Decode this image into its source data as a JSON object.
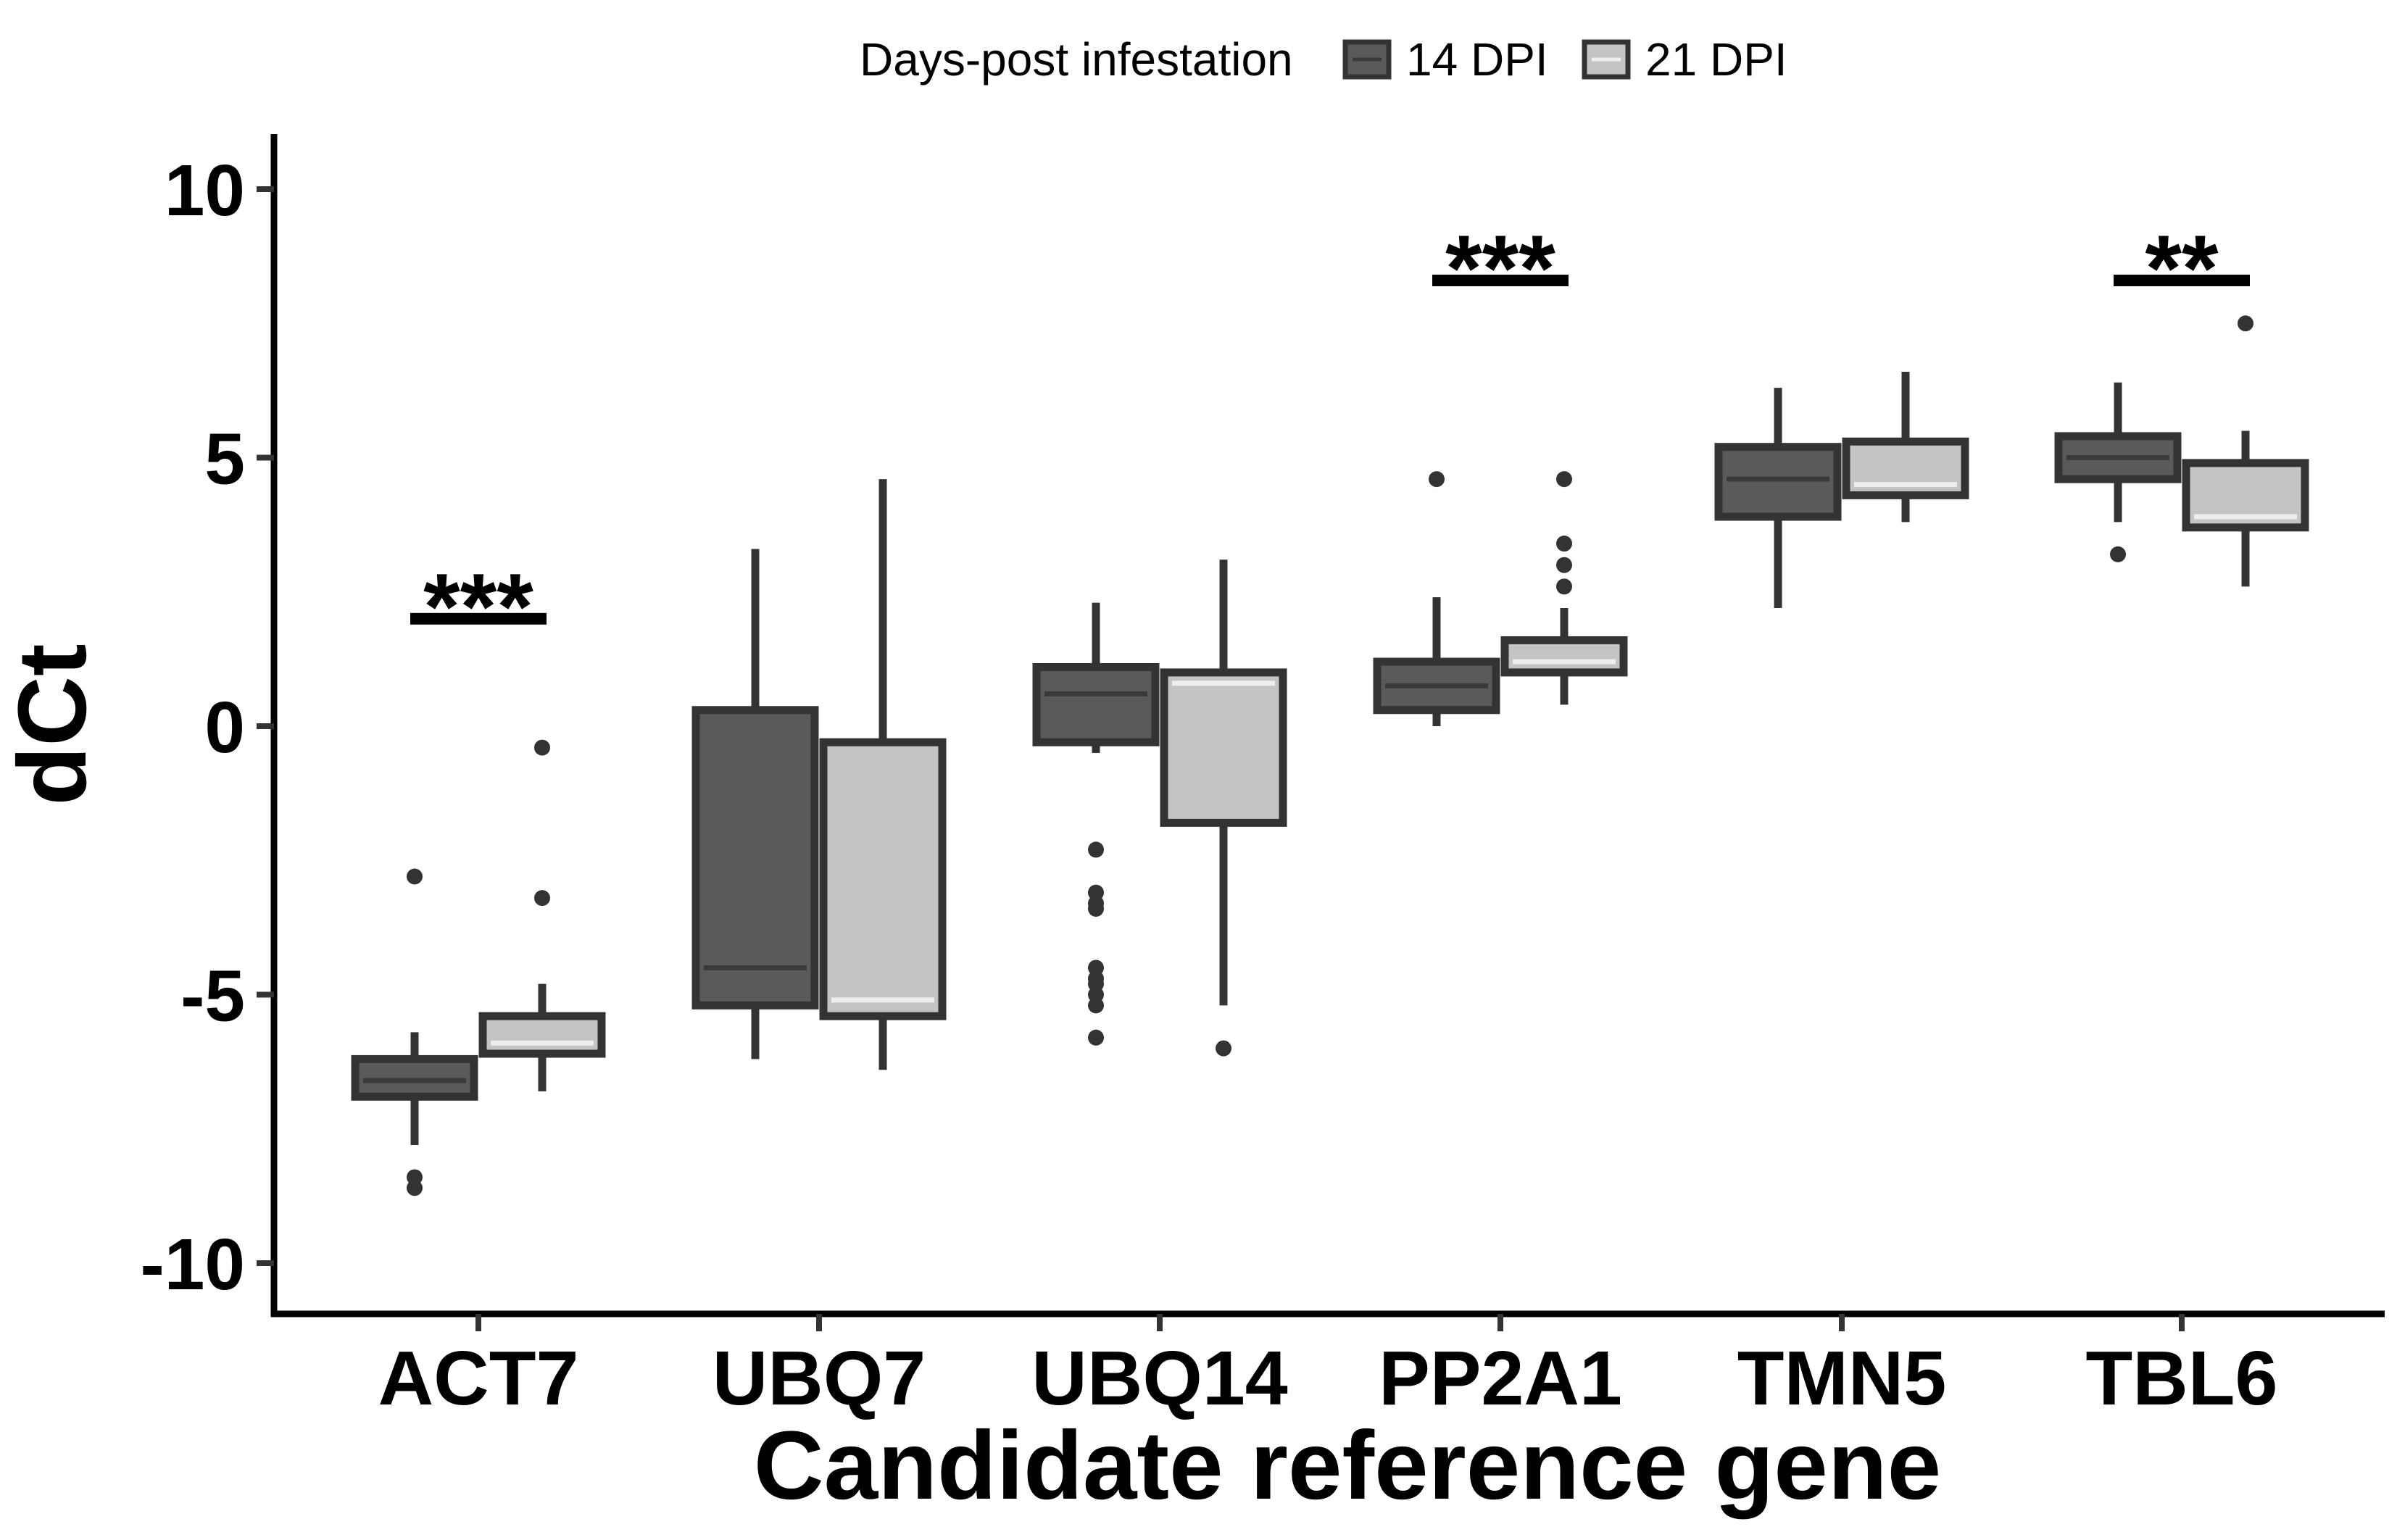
{
  "chart_data": {
    "type": "boxplot",
    "xlabel": "Candidate reference gene",
    "ylabel": "dCt",
    "ylim": [
      -11,
      11
    ],
    "yticks": [
      10,
      5,
      0,
      -5,
      -10
    ],
    "categories": [
      "ACT7",
      "UBQ7",
      "UBQ14",
      "PP2A1",
      "TMN5",
      "TBL6"
    ],
    "legend": {
      "title": "Days-post infestation",
      "position": "top",
      "entries": [
        {
          "name": "14 DPI",
          "fill": "#5a5a5a",
          "median": "#3a3a3a"
        },
        {
          "name": "21 DPI",
          "fill": "#c4c4c4",
          "median": "#eeeeee"
        }
      ]
    },
    "grid": false,
    "series": [
      {
        "name": "14 DPI",
        "boxes": [
          {
            "category": "ACT7",
            "whisker_low": -7.8,
            "q1": -6.9,
            "median": -6.6,
            "q3": -6.2,
            "whisker_high": -5.7,
            "outliers": [
              -2.8,
              -8.4,
              -8.6
            ]
          },
          {
            "category": "UBQ7",
            "whisker_low": -6.2,
            "q1": -5.2,
            "median": -4.5,
            "q3": 0.3,
            "whisker_high": 3.3,
            "outliers": []
          },
          {
            "category": "UBQ14",
            "whisker_low": -0.5,
            "q1": -0.3,
            "median": 0.6,
            "q3": 1.1,
            "whisker_high": 2.3,
            "outliers": [
              -2.3,
              -3.1,
              -3.3,
              -3.4,
              -4.5,
              -4.7,
              -4.8,
              -5.0,
              -5.2,
              -5.8
            ]
          },
          {
            "category": "PP2A1",
            "whisker_low": 0.0,
            "q1": 0.3,
            "median": 0.75,
            "q3": 1.2,
            "whisker_high": 2.4,
            "outliers": [
              4.6
            ]
          },
          {
            "category": "TMN5",
            "whisker_low": 2.2,
            "q1": 3.9,
            "median": 4.6,
            "q3": 5.2,
            "whisker_high": 6.3,
            "outliers": []
          },
          {
            "category": "TBL6",
            "whisker_low": 3.8,
            "q1": 4.6,
            "median": 5.0,
            "q3": 5.4,
            "whisker_high": 6.4,
            "outliers": [
              3.2
            ]
          }
        ]
      },
      {
        "name": "21 DPI",
        "boxes": [
          {
            "category": "ACT7",
            "whisker_low": -6.8,
            "q1": -6.1,
            "median": -5.9,
            "q3": -5.4,
            "whisker_high": -4.8,
            "outliers": [
              -0.4,
              -3.2
            ]
          },
          {
            "category": "UBQ7",
            "whisker_low": -6.4,
            "q1": -5.4,
            "median": -5.1,
            "q3": -0.3,
            "whisker_high": 4.6,
            "outliers": []
          },
          {
            "category": "UBQ14",
            "whisker_low": -5.2,
            "q1": -1.8,
            "median": 0.8,
            "q3": 1.0,
            "whisker_high": 3.1,
            "outliers": [
              -6.0
            ]
          },
          {
            "category": "PP2A1",
            "whisker_low": 0.4,
            "q1": 1.0,
            "median": 1.2,
            "q3": 1.6,
            "whisker_high": 2.2,
            "outliers": [
              2.6,
              3.0,
              3.4,
              4.6
            ]
          },
          {
            "category": "TMN5",
            "whisker_low": 3.8,
            "q1": 4.3,
            "median": 4.5,
            "q3": 5.3,
            "whisker_high": 6.6,
            "outliers": []
          },
          {
            "category": "TBL6",
            "whisker_low": 2.6,
            "q1": 3.7,
            "median": 3.9,
            "q3": 4.9,
            "whisker_high": 5.5,
            "outliers": [
              7.5
            ]
          }
        ]
      }
    ],
    "annotations": [
      {
        "category": "ACT7",
        "label": "***",
        "y": 2.0
      },
      {
        "category": "PP2A1",
        "label": "***",
        "y": 8.3
      },
      {
        "category": "TBL6",
        "label": "**",
        "y": 8.3
      }
    ]
  }
}
